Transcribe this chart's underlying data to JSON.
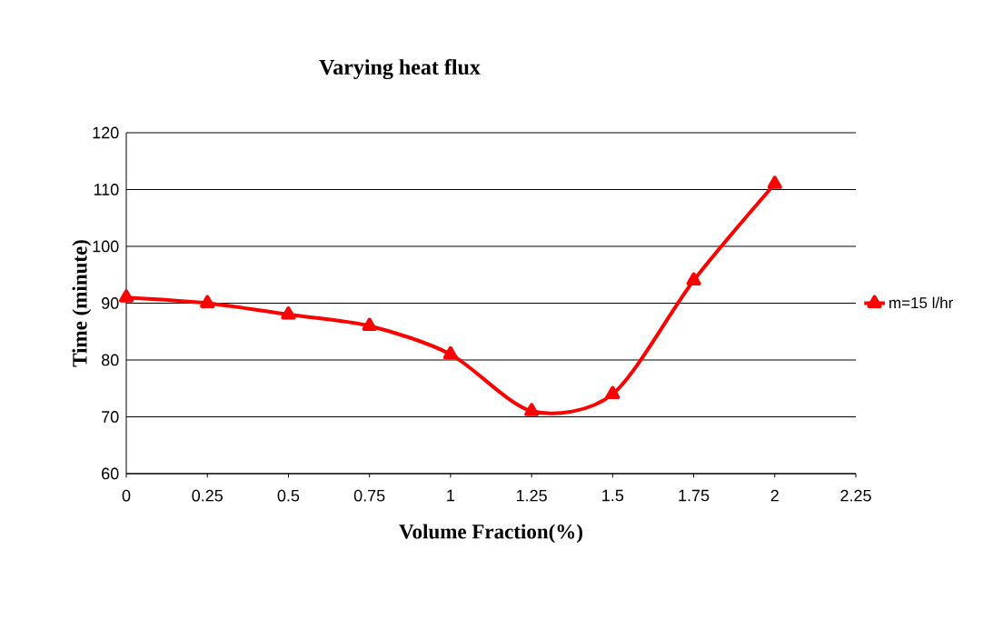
{
  "chart_data": {
    "type": "line",
    "title": "Varying heat flux",
    "xlabel": "Volume Fraction(%)",
    "ylabel": "Time (minute)",
    "x": [
      0,
      0.25,
      0.5,
      0.75,
      1,
      1.25,
      1.5,
      1.75,
      2
    ],
    "series": [
      {
        "name": "m=15 l/hr",
        "color": "#ff0000",
        "values": [
          91,
          90,
          88,
          86,
          81,
          71,
          74,
          94,
          111
        ]
      }
    ],
    "xlim": [
      0,
      2.25
    ],
    "xticks": [
      0,
      0.25,
      0.5,
      0.75,
      1,
      1.25,
      1.5,
      1.75,
      2,
      2.25
    ],
    "ylim": [
      60,
      120
    ],
    "yticks": [
      60,
      70,
      80,
      90,
      100,
      110,
      120
    ],
    "grid": "y",
    "legend": "right",
    "marker": "triangle",
    "line_style": "solid"
  }
}
